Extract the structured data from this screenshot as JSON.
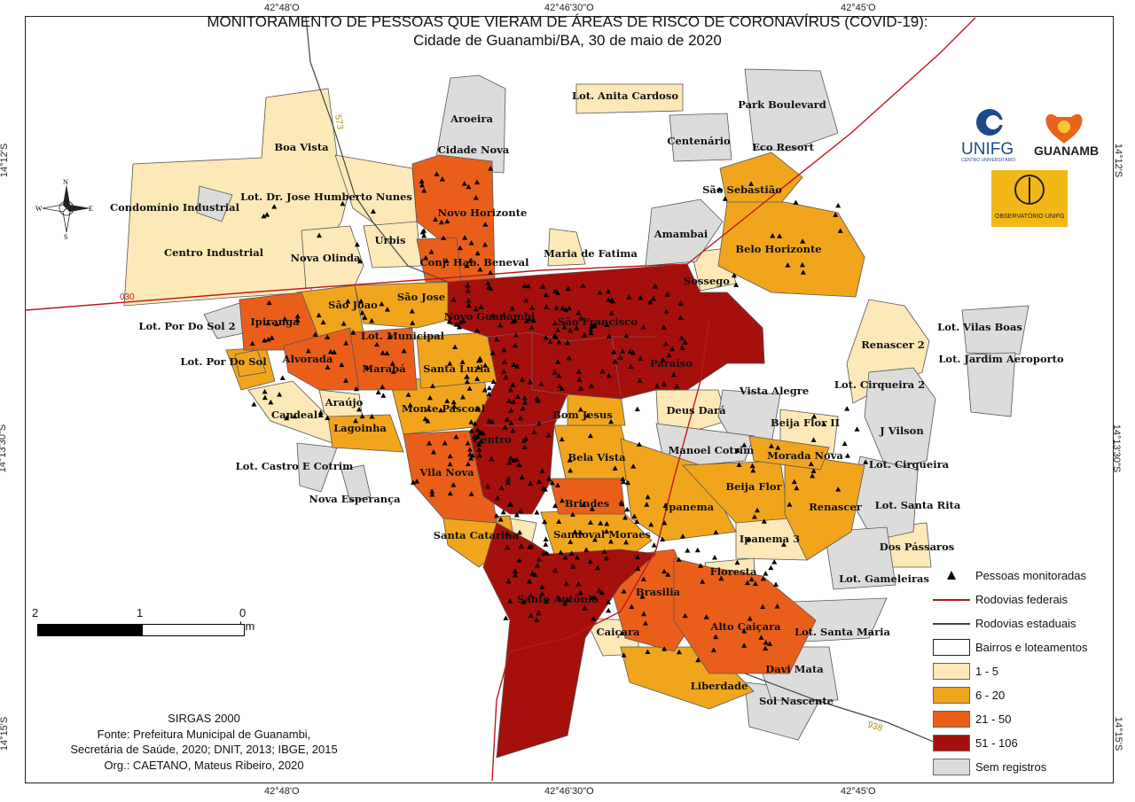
{
  "map": {
    "title_line1": "MONITORAMENTO DE PESSOAS QUE VIERAM DE ÁREAS DE RISCO DE CORONAVÍRUS (COVID-19):",
    "title_line2": "Cidade de Guanambi/BA, 30 de maio de 2020"
  },
  "graticule": {
    "top": [
      "42°48'O",
      "42°46'30\"O",
      "42°45'O"
    ],
    "bottom": [
      "42°48'O",
      "42°46'30\"O",
      "42°45'O"
    ],
    "left": [
      "14°12'S",
      "14°13'30\"S",
      "14°15'S"
    ],
    "right": [
      "14°12'S",
      "14°13'30\"S",
      "14°15'S"
    ]
  },
  "compass": {
    "n": "N",
    "s": "S",
    "e": "E",
    "w": "W"
  },
  "scale": {
    "labels": [
      "2",
      "1",
      "0 km"
    ]
  },
  "source": {
    "line1": "SIRGAS 2000",
    "line2": "Fonte: Prefeitura Municipal de Guanambi,",
    "line3": "Secretária de Saúde, 2020; DNIT, 2013; IBGE, 2015",
    "line4": "Org.: CAETANO, Mateus Ribeiro, 2020"
  },
  "logos": {
    "unifg": "UNIFG",
    "unifg_sub": "CENTRO UNIVERSITÁRIO",
    "guanambi": "GUANAMBI",
    "observatorio": "OBSERVATÓRIO UNIFG"
  },
  "legend": [
    {
      "label": "Pessoas monitoradas",
      "kind": "point"
    },
    {
      "label": "Rodovias federais",
      "kind": "line",
      "color": "#c0161b"
    },
    {
      "label": "Rodovias estaduais",
      "kind": "line",
      "color": "#444444"
    },
    {
      "label": "Bairros e loteamentos",
      "kind": "box",
      "color": "#ffffff"
    },
    {
      "label": "1 - 5",
      "kind": "box",
      "color": "#fde9b8"
    },
    {
      "label": "6 - 20",
      "kind": "box",
      "color": "#f0a51c"
    },
    {
      "label": "21 - 50",
      "kind": "box",
      "color": "#e95f1a"
    },
    {
      "label": "51 - 106",
      "kind": "box",
      "color": "#a50f0c"
    },
    {
      "label": "Sem registros",
      "kind": "box",
      "color": "#dcdcdc"
    }
  ],
  "roads": {
    "r573": "573",
    "r030": "030",
    "r938": "938",
    "r0xx": "030"
  },
  "neighborhoods": [
    "Lot. Anita Cardoso",
    "Park Boulevard",
    "Aroeira",
    "Centenário",
    "Eco Resort",
    "Cidade Nova",
    "Boa Vista",
    "São Sebastião",
    "Lot. Dr. Jose Humberto Nunes",
    "Novo Horizonte",
    "Condomínio Industrial",
    "Amambai",
    "Urbis",
    "Belo Horizonte",
    "Centro Industrial",
    "Nova Olinda",
    "Conj. Hab. Beneval",
    "Maria de Fatima",
    "Sossego",
    "São Jose",
    "São Joao",
    "Novo Guanambi",
    "São Francisco",
    "Lot. Por Do Sol 2",
    "Ipiranga",
    "Lot. Vilas Boas",
    "Lot. Municipal",
    "Renascer 2",
    "Alvorada",
    "Lot. Jardim Aeroporto",
    "Lot. Por Do Sol",
    "Marabá",
    "Santa Luzia",
    "Paraíso",
    "Vista Alegre",
    "Lot. Cirqueira 2",
    "Araújo",
    "Monte Pascoal",
    "Bom Jesus",
    "Deus Dará",
    "Candeal",
    "Beija Flor II",
    "Lagoinha",
    "J Vilson",
    "Centro",
    "Manoel Cotrim",
    "Morada Nova",
    "Lot. Castro E Cotrim",
    "Bela Vista",
    "Lot. Cirqueira",
    "Vila Nova",
    "Beija Flor",
    "Nova Esperança",
    "Brindes",
    "Ipanema",
    "Renascer",
    "Lot. Santa Rita",
    "Santa Catarina",
    "Sandoval Moraes",
    "Ipanema 3",
    "Dos Pássaros",
    "Floresta",
    "Lot. Gameleiras",
    "Brasilia",
    "Santo Antônio",
    "Alto Caiçara",
    "Lot. Santa Maria",
    "Caiçara",
    "Davi Mata",
    "Liberdade",
    "Sol Nascente"
  ],
  "colors": {
    "c1": "#fde9b8",
    "c2": "#f0a51c",
    "c3": "#e95f1a",
    "c4": "#a50f0c",
    "none": "#dcdcdc",
    "federal": "#c0161b",
    "state": "#444444"
  }
}
